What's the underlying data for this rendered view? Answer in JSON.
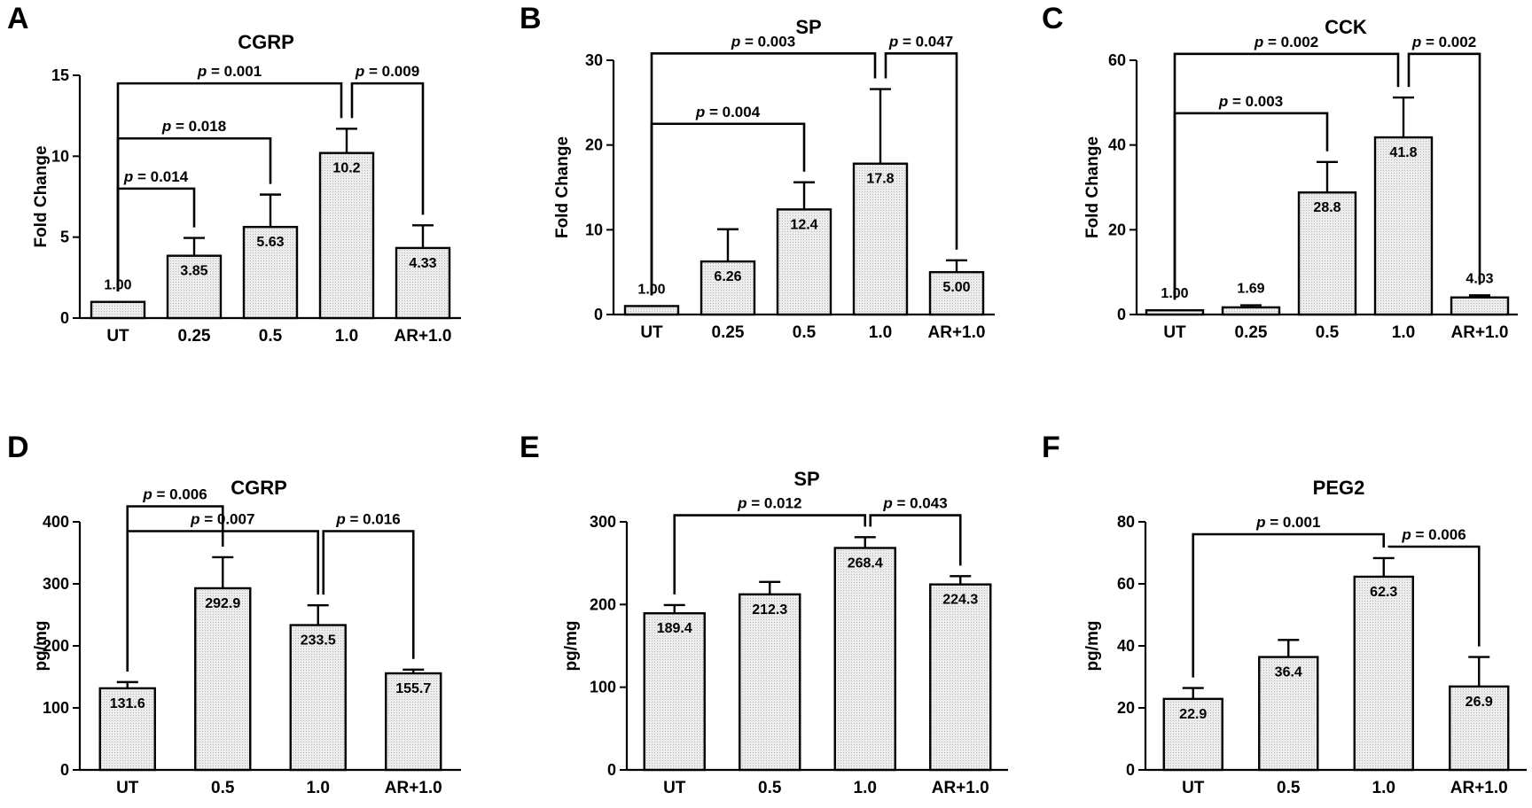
{
  "chart_data": [
    {
      "panel": "A",
      "type": "bar",
      "title": "CGRP",
      "ylabel": "Fold Change",
      "categories": [
        "UT",
        "0.25",
        "0.5",
        "1.0",
        "AR+1.0"
      ],
      "values": [
        1.0,
        3.85,
        5.63,
        10.2,
        4.33
      ],
      "value_labels": [
        "1.00",
        "3.85",
        "5.63",
        "10.2",
        "4.33"
      ],
      "errors": [
        0,
        1.1,
        2.0,
        1.5,
        1.4
      ],
      "ylim": [
        0,
        15
      ],
      "yticks": [
        0,
        5,
        10,
        15
      ],
      "comparisons": [
        {
          "a": 0,
          "b": 3,
          "label": "p = 0.001",
          "y": 14.5
        },
        {
          "a": 0,
          "b": 2,
          "label": "p = 0.018",
          "y": 11.1
        },
        {
          "a": 0,
          "b": 1,
          "label": "p = 0.014",
          "y": 8.0
        },
        {
          "a": 3,
          "b": 4,
          "label": "p = 0.009",
          "y": 14.5
        }
      ]
    },
    {
      "panel": "B",
      "type": "bar",
      "title": "SP",
      "ylabel": "Fold Change",
      "categories": [
        "UT",
        "0.25",
        "0.5",
        "1.0",
        "AR+1.0"
      ],
      "values": [
        1.0,
        6.26,
        12.4,
        17.8,
        5.0
      ],
      "value_labels": [
        "1.00",
        "6.26",
        "12.4",
        "17.8",
        "5.00"
      ],
      "errors": [
        0,
        3.8,
        3.2,
        8.8,
        1.4
      ],
      "ylim": [
        0,
        30
      ],
      "yticks": [
        0,
        10,
        20,
        30
      ],
      "comparisons": [
        {
          "a": 0,
          "b": 3,
          "label": "p = 0.003",
          "y": 30.8
        },
        {
          "a": 0,
          "b": 2,
          "label": "p = 0.004",
          "y": 22.5
        },
        {
          "a": 3,
          "b": 4,
          "label": "p = 0.047",
          "y": 30.8
        }
      ]
    },
    {
      "panel": "C",
      "type": "bar",
      "title": "CCK",
      "ylabel": "Fold Change",
      "categories": [
        "UT",
        "0.25",
        "0.5",
        "1.0",
        "AR+1.0"
      ],
      "values": [
        1.0,
        1.69,
        28.8,
        41.8,
        4.03
      ],
      "value_labels": [
        "1.00",
        "1.69",
        "28.8",
        "41.8",
        "4.03"
      ],
      "errors": [
        0,
        0.5,
        7.2,
        9.4,
        0.5
      ],
      "ylim": [
        0,
        60
      ],
      "yticks": [
        0,
        20,
        40,
        60
      ],
      "comparisons": [
        {
          "a": 0,
          "b": 3,
          "label": "p = 0.002",
          "y": 61.5
        },
        {
          "a": 0,
          "b": 2,
          "label": "p = 0.003",
          "y": 47.5
        },
        {
          "a": 3,
          "b": 4,
          "label": "p = 0.002",
          "y": 61.5
        }
      ]
    },
    {
      "panel": "D",
      "type": "bar",
      "title": "CGRP",
      "ylabel": "pg/mg",
      "categories": [
        "UT",
        "0.5",
        "1.0",
        "AR+1.0"
      ],
      "values": [
        131.6,
        292.9,
        233.5,
        155.7
      ],
      "value_labels": [
        "131.6",
        "292.9",
        "233.5",
        "155.7"
      ],
      "errors": [
        10,
        50,
        32,
        6
      ],
      "ylim": [
        0,
        400
      ],
      "yticks": [
        0,
        100,
        200,
        300,
        400
      ],
      "comparisons": [
        {
          "a": 0,
          "b": 1,
          "label": "p = 0.006",
          "y": 425
        },
        {
          "a": 0,
          "b": 2,
          "label": "p = 0.007",
          "y": 385
        },
        {
          "a": 2,
          "b": 3,
          "label": "p = 0.016",
          "y": 385
        }
      ]
    },
    {
      "panel": "E",
      "type": "bar",
      "title": "SP",
      "ylabel": "pg/mg",
      "categories": [
        "UT",
        "0.5",
        "1.0",
        "AR+1.0"
      ],
      "values": [
        189.4,
        212.3,
        268.4,
        224.3
      ],
      "value_labels": [
        "189.4",
        "212.3",
        "268.4",
        "224.3"
      ],
      "errors": [
        10,
        15,
        13,
        10
      ],
      "ylim": [
        0,
        300
      ],
      "yticks": [
        0,
        100,
        200,
        300
      ],
      "comparisons": [
        {
          "a": 0,
          "b": 2,
          "label": "p = 0.012",
          "y": 308
        },
        {
          "a": 2,
          "b": 3,
          "label": "p = 0.043",
          "y": 308
        }
      ]
    },
    {
      "panel": "F",
      "type": "bar",
      "title": "PEG2",
      "ylabel": "pg/mg",
      "categories": [
        "UT",
        "0.5",
        "1.0",
        "AR+1.0"
      ],
      "values": [
        22.9,
        36.4,
        62.3,
        26.9
      ],
      "value_labels": [
        "22.9",
        "36.4",
        "62.3",
        "26.9"
      ],
      "errors": [
        3.5,
        5.5,
        6,
        9.5
      ],
      "ylim": [
        0,
        80
      ],
      "yticks": [
        0,
        20,
        40,
        60,
        80
      ],
      "comparisons": [
        {
          "a": 0,
          "b": 2,
          "label": "p = 0.001",
          "y": 76
        },
        {
          "a": 2,
          "b": 3,
          "label": "p = 0.006",
          "y": 72
        }
      ]
    }
  ]
}
